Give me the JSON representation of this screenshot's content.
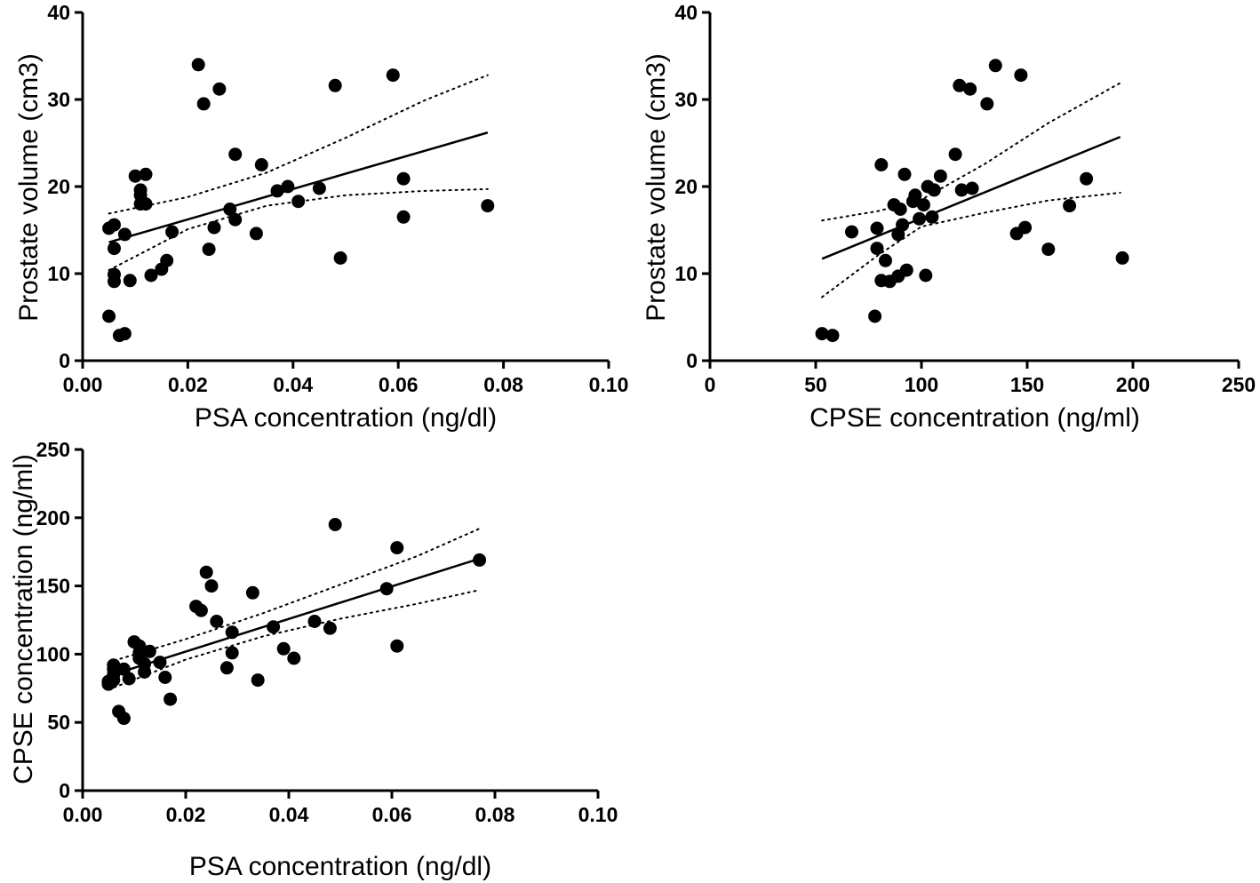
{
  "chart_data": [
    {
      "type": "scatter",
      "id": "psa-vs-volume",
      "xlabel": "PSA concentration (ng/dl)",
      "ylabel": "Prostate volume (cm3)",
      "xlim": [
        0,
        0.1
      ],
      "ylim": [
        0,
        40
      ],
      "xticks": [
        "0.00",
        "0.02",
        "0.04",
        "0.06",
        "0.08",
        "0.10"
      ],
      "yticks": [
        "0",
        "10",
        "20",
        "30",
        "40"
      ],
      "points": [
        [
          0.005,
          15.2
        ],
        [
          0.005,
          5.1
        ],
        [
          0.006,
          15.6
        ],
        [
          0.006,
          12.9
        ],
        [
          0.006,
          9.9
        ],
        [
          0.006,
          9.1
        ],
        [
          0.007,
          2.9
        ],
        [
          0.008,
          3.1
        ],
        [
          0.008,
          14.5
        ],
        [
          0.009,
          9.2
        ],
        [
          0.01,
          21.2
        ],
        [
          0.011,
          19.6
        ],
        [
          0.011,
          19.0
        ],
        [
          0.011,
          18.0
        ],
        [
          0.012,
          21.4
        ],
        [
          0.012,
          18.0
        ],
        [
          0.013,
          9.8
        ],
        [
          0.015,
          10.5
        ],
        [
          0.016,
          11.5
        ],
        [
          0.017,
          14.8
        ],
        [
          0.022,
          34.0
        ],
        [
          0.023,
          29.5
        ],
        [
          0.024,
          12.8
        ],
        [
          0.025,
          15.3
        ],
        [
          0.026,
          31.2
        ],
        [
          0.028,
          17.4
        ],
        [
          0.029,
          23.7
        ],
        [
          0.029,
          16.2
        ],
        [
          0.033,
          14.6
        ],
        [
          0.034,
          22.5
        ],
        [
          0.037,
          19.5
        ],
        [
          0.039,
          20.0
        ],
        [
          0.041,
          18.3
        ],
        [
          0.045,
          19.8
        ],
        [
          0.048,
          31.6
        ],
        [
          0.049,
          11.8
        ],
        [
          0.059,
          32.8
        ],
        [
          0.061,
          20.9
        ],
        [
          0.061,
          16.5
        ],
        [
          0.077,
          17.8
        ]
      ],
      "fit": {
        "x": [
          0.005,
          0.077
        ],
        "y": [
          13.6,
          26.2
        ]
      },
      "ci_upper": [
        [
          0.005,
          16.9
        ],
        [
          0.02,
          18.8
        ],
        [
          0.035,
          21.6
        ],
        [
          0.05,
          25.6
        ],
        [
          0.065,
          29.9
        ],
        [
          0.077,
          32.8
        ]
      ],
      "ci_lower": [
        [
          0.005,
          10.4
        ],
        [
          0.02,
          15.1
        ],
        [
          0.035,
          17.8
        ],
        [
          0.05,
          19.0
        ],
        [
          0.065,
          19.5
        ],
        [
          0.077,
          19.7
        ]
      ]
    },
    {
      "type": "scatter",
      "id": "cpse-vs-volume",
      "xlabel": "CPSE concentration (ng/ml)",
      "ylabel": "Prostate volume (cm3)",
      "xlim": [
        0,
        250
      ],
      "ylim": [
        0,
        40
      ],
      "xticks": [
        "0",
        "50",
        "100",
        "150",
        "200",
        "250"
      ],
      "yticks": [
        "0",
        "10",
        "20",
        "30",
        "40"
      ],
      "points": [
        [
          53,
          3.1
        ],
        [
          58,
          2.9
        ],
        [
          67,
          14.8
        ],
        [
          78,
          5.1
        ],
        [
          79,
          15.2
        ],
        [
          79,
          12.9
        ],
        [
          81,
          22.5
        ],
        [
          81,
          9.2
        ],
        [
          83,
          11.5
        ],
        [
          85,
          9.1
        ],
        [
          87,
          17.9
        ],
        [
          89,
          9.7
        ],
        [
          89,
          14.5
        ],
        [
          90,
          17.4
        ],
        [
          91,
          15.6
        ],
        [
          92,
          21.4
        ],
        [
          93,
          10.4
        ],
        [
          96,
          18.3
        ],
        [
          97,
          19.0
        ],
        [
          99,
          16.3
        ],
        [
          101,
          17.9
        ],
        [
          102,
          9.8
        ],
        [
          103,
          20.0
        ],
        [
          105,
          16.5
        ],
        [
          106,
          19.6
        ],
        [
          109,
          21.2
        ],
        [
          116,
          23.7
        ],
        [
          118,
          31.6
        ],
        [
          119,
          19.6
        ],
        [
          123,
          31.2
        ],
        [
          124,
          19.8
        ],
        [
          131,
          29.5
        ],
        [
          135,
          33.9
        ],
        [
          145,
          14.6
        ],
        [
          147,
          32.8
        ],
        [
          149,
          15.3
        ],
        [
          160,
          12.8
        ],
        [
          170,
          17.8
        ],
        [
          178,
          20.9
        ],
        [
          195,
          11.8
        ]
      ],
      "fit": {
        "x": [
          53,
          194
        ],
        "y": [
          11.7,
          25.7
        ]
      },
      "ci_upper": [
        [
          53,
          16.1
        ],
        [
          80,
          17.2
        ],
        [
          100,
          18.5
        ],
        [
          130,
          22.6
        ],
        [
          160,
          27.3
        ],
        [
          194,
          31.9
        ]
      ],
      "ci_lower": [
        [
          53,
          7.3
        ],
        [
          80,
          12.2
        ],
        [
          100,
          15.4
        ],
        [
          130,
          17.0
        ],
        [
          160,
          18.4
        ],
        [
          194,
          19.3
        ]
      ]
    },
    {
      "type": "scatter",
      "id": "psa-vs-cpse",
      "xlabel": "PSA concentration (ng/dl)",
      "ylabel": "CPSE concentration (ng/ml)",
      "xlim": [
        0,
        0.1
      ],
      "ylim": [
        0,
        250
      ],
      "xticks": [
        "0.00",
        "0.02",
        "0.04",
        "0.06",
        "0.08",
        "0.10"
      ],
      "yticks": [
        "0",
        "50",
        "100",
        "150",
        "200",
        "250"
      ],
      "points": [
        [
          0.005,
          80
        ],
        [
          0.005,
          78
        ],
        [
          0.006,
          92
        ],
        [
          0.006,
          89
        ],
        [
          0.006,
          85
        ],
        [
          0.006,
          81
        ],
        [
          0.007,
          58
        ],
        [
          0.008,
          53
        ],
        [
          0.008,
          89
        ],
        [
          0.009,
          82
        ],
        [
          0.01,
          109
        ],
        [
          0.011,
          106
        ],
        [
          0.011,
          101
        ],
        [
          0.011,
          97
        ],
        [
          0.012,
          93
        ],
        [
          0.012,
          87
        ],
        [
          0.013,
          102
        ],
        [
          0.015,
          94
        ],
        [
          0.016,
          83
        ],
        [
          0.017,
          67
        ],
        [
          0.022,
          135
        ],
        [
          0.023,
          132
        ],
        [
          0.024,
          160
        ],
        [
          0.025,
          150
        ],
        [
          0.026,
          124
        ],
        [
          0.028,
          90
        ],
        [
          0.029,
          116
        ],
        [
          0.029,
          101
        ],
        [
          0.033,
          145
        ],
        [
          0.034,
          81
        ],
        [
          0.037,
          120
        ],
        [
          0.039,
          104
        ],
        [
          0.041,
          97
        ],
        [
          0.045,
          124
        ],
        [
          0.048,
          119
        ],
        [
          0.049,
          195
        ],
        [
          0.059,
          148
        ],
        [
          0.061,
          178
        ],
        [
          0.061,
          106
        ],
        [
          0.077,
          169
        ]
      ],
      "fit": {
        "x": [
          0.005,
          0.077
        ],
        "y": [
          84,
          170
        ]
      },
      "ci_upper": [
        [
          0.005,
          94
        ],
        [
          0.02,
          111
        ],
        [
          0.035,
          130
        ],
        [
          0.05,
          151
        ],
        [
          0.065,
          172
        ],
        [
          0.077,
          192
        ]
      ],
      "ci_lower": [
        [
          0.005,
          74
        ],
        [
          0.02,
          96
        ],
        [
          0.035,
          113
        ],
        [
          0.05,
          126
        ],
        [
          0.065,
          137
        ],
        [
          0.077,
          147
        ]
      ]
    }
  ]
}
